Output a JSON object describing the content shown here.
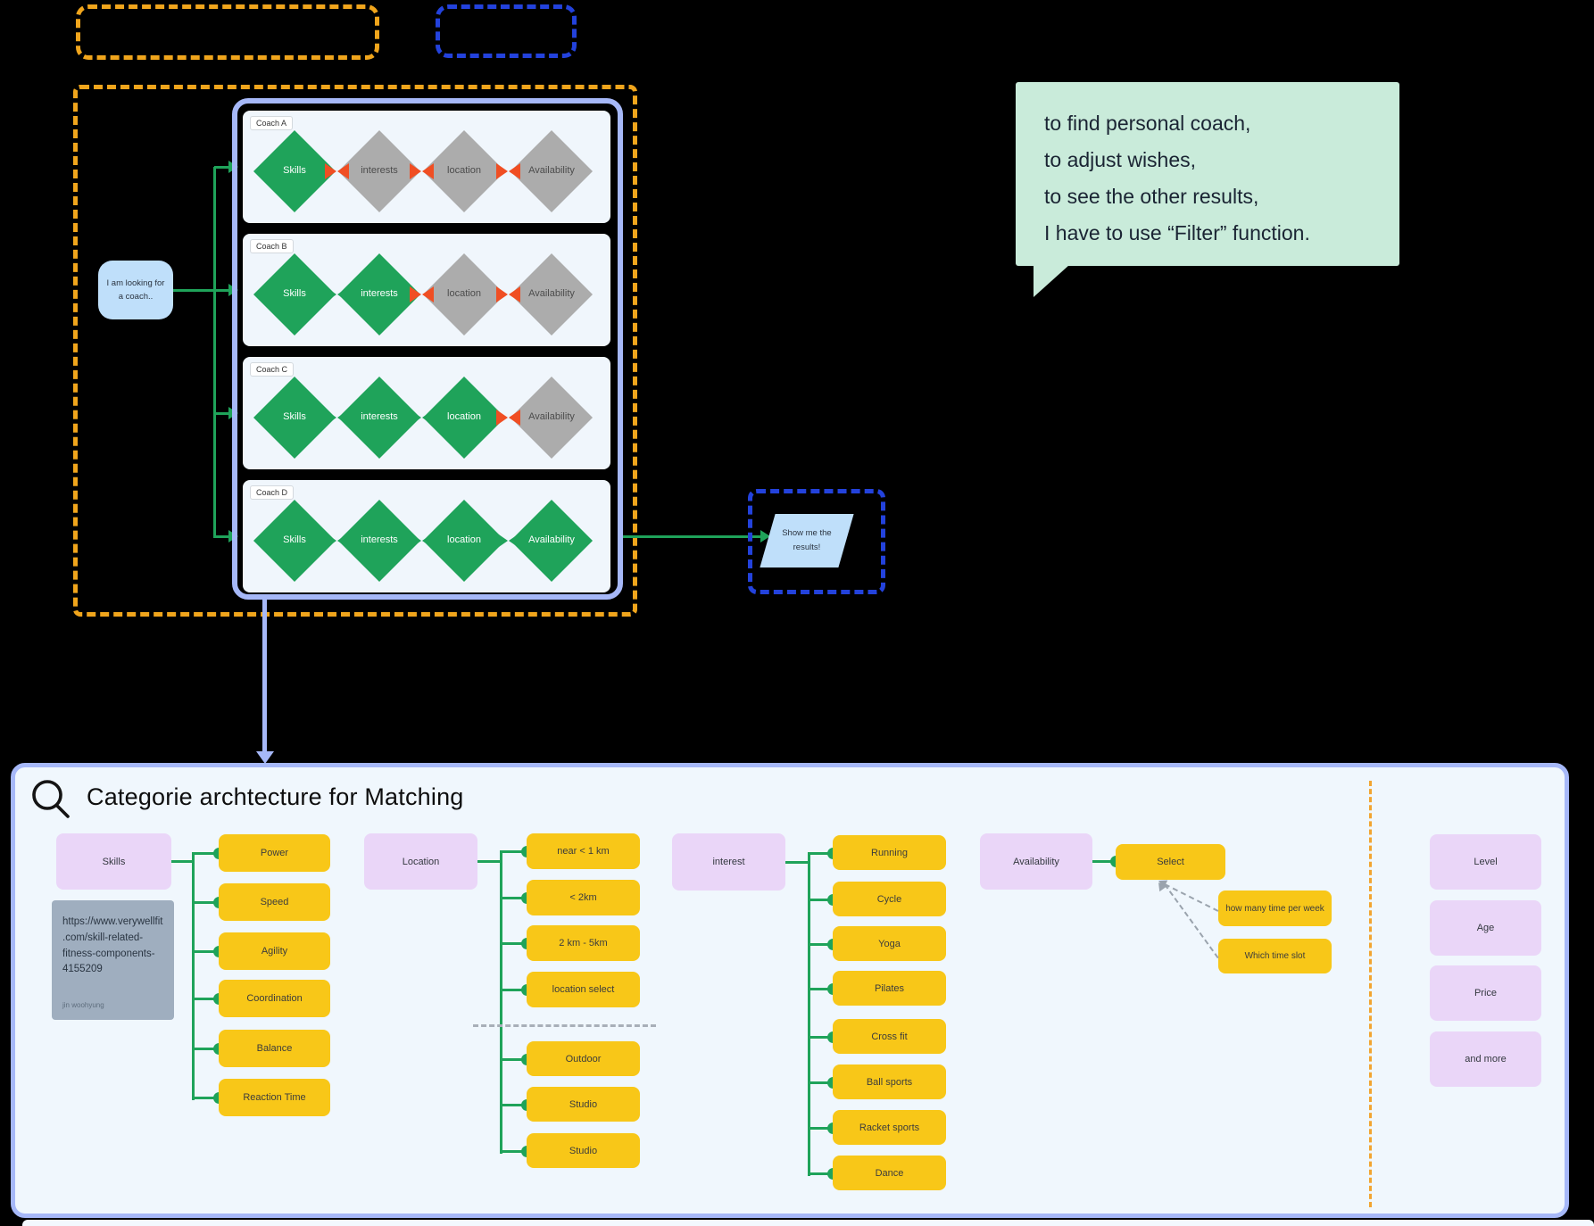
{
  "flow": {
    "start_bubble": "I am looking for a coach..",
    "coaches": [
      {
        "label": "Coach A",
        "criteria": [
          {
            "label": "Skills",
            "state": "match"
          },
          {
            "label": "interests",
            "state": "miss"
          },
          {
            "label": "location",
            "state": "miss"
          },
          {
            "label": "Availability",
            "state": "miss"
          }
        ],
        "connectors": [
          "miss",
          "miss",
          "miss"
        ]
      },
      {
        "label": "Coach B",
        "criteria": [
          {
            "label": "Skills",
            "state": "match"
          },
          {
            "label": "interests",
            "state": "match"
          },
          {
            "label": "location",
            "state": "miss"
          },
          {
            "label": "Availability",
            "state": "miss"
          }
        ],
        "connectors": [
          "match",
          "miss",
          "miss"
        ]
      },
      {
        "label": "Coach C",
        "criteria": [
          {
            "label": "Skills",
            "state": "match"
          },
          {
            "label": "interests",
            "state": "match"
          },
          {
            "label": "location",
            "state": "match"
          },
          {
            "label": "Availability",
            "state": "miss"
          }
        ],
        "connectors": [
          "match",
          "match",
          "miss"
        ]
      },
      {
        "label": "Coach D",
        "criteria": [
          {
            "label": "Skills",
            "state": "match"
          },
          {
            "label": "interests",
            "state": "match"
          },
          {
            "label": "location",
            "state": "match"
          },
          {
            "label": "Availability",
            "state": "match"
          }
        ],
        "connectors": [
          "match",
          "match",
          "match"
        ]
      }
    ],
    "result_label": "Show me the results!"
  },
  "note_bubble": {
    "lines": [
      "to find personal coach,",
      "to adjust wishes,",
      "to see the other results,",
      "I have to use “Filter” function."
    ]
  },
  "matching_panel": {
    "title": "Categorie archtecture for Matching",
    "icon": "magnifier-icon",
    "groups": [
      {
        "parent": "Skills",
        "children": [
          "Power",
          "Speed",
          "Agility",
          "Coordination",
          "Balance",
          "Reaction Time"
        ]
      },
      {
        "parent": "Location",
        "children": [
          "near < 1 km",
          "< 2km",
          "2 km - 5km",
          "location select"
        ],
        "children_below_divider": [
          "Outdoor",
          "Studio",
          "Studio"
        ]
      },
      {
        "parent": "interest",
        "children": [
          "Running",
          "Cycle",
          "Yoga",
          "Pilates",
          "Cross fit",
          "Ball sports",
          "Racket sports",
          "Dance"
        ]
      },
      {
        "parent": "Availability",
        "children": [
          "Select"
        ],
        "sub_children": [
          "how many time per week",
          "Which time slot"
        ]
      }
    ],
    "extra_filters": [
      "Level",
      "Age",
      "Price",
      "and more"
    ],
    "source_note": {
      "url": "https://www.verywellfit.com/skill-related-fitness-components-4155209",
      "author": "jin woohyung"
    }
  },
  "colors": {
    "match_green": "#1FA35A",
    "mismatch_red": "#F04E23",
    "frame_orange": "#F0A51C",
    "frame_blue": "#2342DC",
    "periwinkle": "#A6B8F8",
    "bubble_blue": "#BFDFFA",
    "mint": "#C9EBDA",
    "yellow": "#F8C718",
    "purple": "#EAD6F8",
    "note_gray": "#9FAEBF"
  }
}
